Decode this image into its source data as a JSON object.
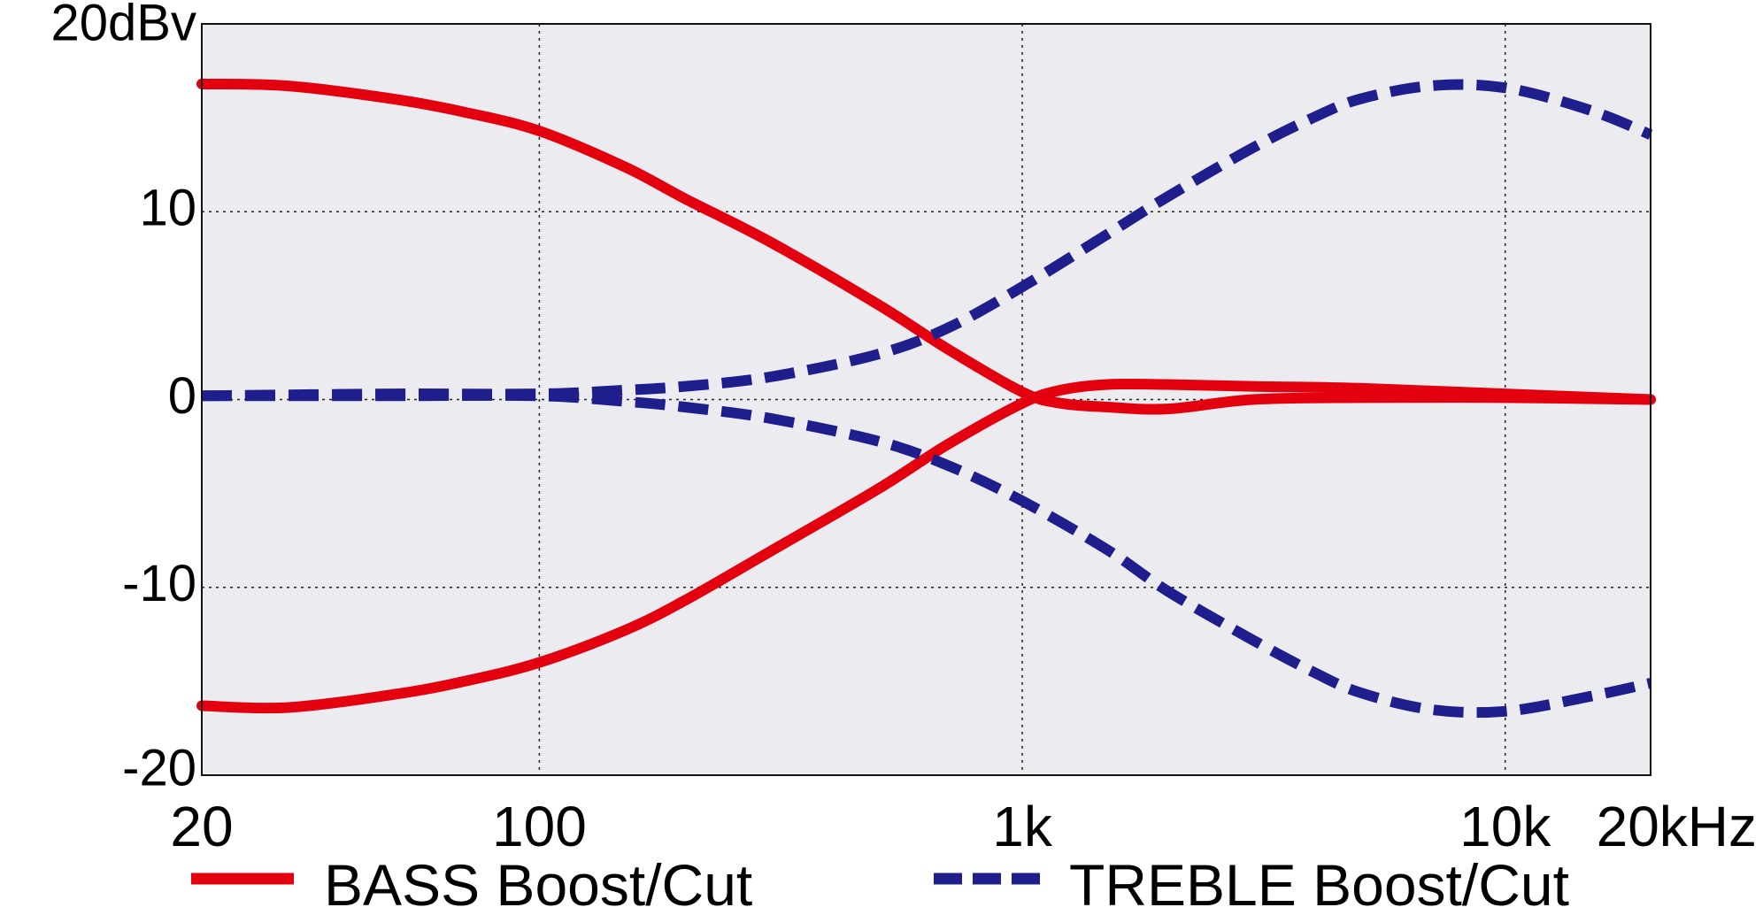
{
  "chart_data": {
    "type": "line",
    "title": "",
    "xlabel": "",
    "ylabel": "",
    "x_scale": "log",
    "xlim": [
      20,
      20000
    ],
    "ylim": [
      -20,
      20
    ],
    "grid": true,
    "legend_position": "bottom",
    "x_ticks": [
      {
        "value": 20,
        "label": "20"
      },
      {
        "value": 100,
        "label": "100"
      },
      {
        "value": 1000,
        "label": "1k"
      },
      {
        "value": 10000,
        "label": "10k"
      },
      {
        "value": 20000,
        "label": "20kHz"
      }
    ],
    "y_ticks": [
      {
        "value": 20,
        "label": "20dBv"
      },
      {
        "value": 10,
        "label": "10"
      },
      {
        "value": 0,
        "label": "0"
      },
      {
        "value": -10,
        "label": "-10"
      },
      {
        "value": -20,
        "label": "-20"
      }
    ],
    "series": [
      {
        "name": "BASS Boost/Cut",
        "group": "bass",
        "color": "#e3000f",
        "style": "solid",
        "x": [
          20,
          30,
          50,
          70,
          100,
          150,
          200,
          300,
          500,
          700,
          1000,
          1200,
          1500,
          2000,
          3000,
          5000,
          10000,
          20000
        ],
        "y": [
          16.8,
          16.7,
          16.0,
          15.3,
          14.3,
          12.4,
          10.7,
          8.4,
          5.1,
          2.7,
          0.4,
          -0.2,
          -0.4,
          -0.5,
          0.0,
          0.1,
          0.1,
          0.0
        ]
      },
      {
        "name": "",
        "group": "bass",
        "color": "#e3000f",
        "style": "solid",
        "x": [
          20,
          30,
          50,
          70,
          100,
          150,
          200,
          300,
          500,
          700,
          1000,
          1200,
          1500,
          2000,
          3000,
          5000,
          10000,
          20000
        ],
        "y": [
          -16.3,
          -16.4,
          -15.7,
          -15.0,
          -14.0,
          -12.3,
          -10.7,
          -8.1,
          -4.8,
          -2.4,
          -0.2,
          0.5,
          0.8,
          0.8,
          0.7,
          0.6,
          0.3,
          0.0
        ]
      },
      {
        "name": "TREBLE Boost/Cut",
        "group": "treble",
        "color": "#1e1e8c",
        "style": "dashed",
        "x": [
          20,
          50,
          100,
          150,
          200,
          300,
          500,
          700,
          1000,
          1500,
          2000,
          3000,
          4000,
          5000,
          7000,
          10000,
          15000,
          20000
        ],
        "y": [
          0.2,
          0.3,
          0.3,
          0.5,
          0.7,
          1.2,
          2.4,
          3.8,
          6.0,
          8.8,
          10.8,
          13.4,
          15.0,
          16.0,
          16.7,
          16.6,
          15.4,
          14.1
        ]
      },
      {
        "name": "",
        "group": "treble",
        "color": "#1e1e8c",
        "style": "dashed",
        "x": [
          20,
          50,
          100,
          150,
          200,
          300,
          500,
          700,
          1000,
          1500,
          2000,
          3000,
          4000,
          5000,
          7000,
          10000,
          15000,
          20000
        ],
        "y": [
          0.2,
          0.2,
          0.2,
          -0.1,
          -0.4,
          -1.0,
          -2.2,
          -3.5,
          -5.4,
          -8.0,
          -10.2,
          -12.8,
          -14.5,
          -15.6,
          -16.5,
          -16.6,
          -15.8,
          -15.1
        ]
      }
    ],
    "legend": [
      {
        "label": "BASS Boost/Cut",
        "color": "#e3000f",
        "style": "solid"
      },
      {
        "label": "TREBLE Boost/Cut",
        "color": "#1e1e8c",
        "style": "dashed"
      }
    ],
    "colors": {
      "plot_background": "#ececf0",
      "grid": "#222222",
      "frame": "#111111"
    }
  }
}
